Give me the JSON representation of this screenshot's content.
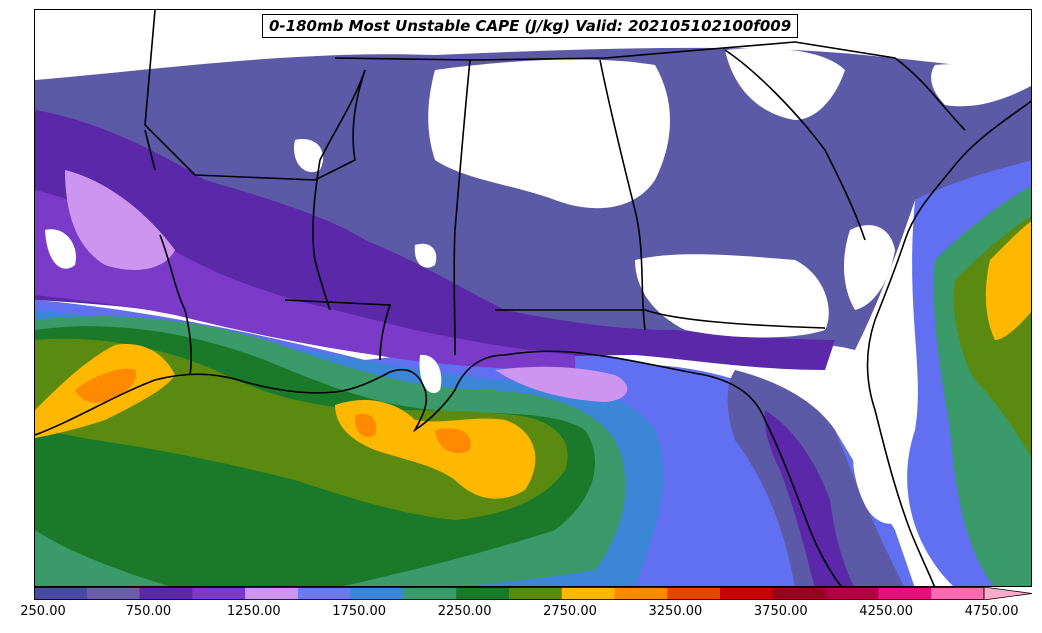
{
  "title": "0-180mb Most Unstable CAPE (J/kg) Valid: 202105102100f009",
  "colorbar": {
    "colors": [
      "#4a4aa0",
      "#6a5ea8",
      "#5a28a8",
      "#7a3cc8",
      "#cc96f0",
      "#6e78f0",
      "#3c86d8",
      "#3a9a6a",
      "#1a7a2a",
      "#5a8a10",
      "#ffb800",
      "#ff8a00",
      "#e84400",
      "#cc0000",
      "#9a0020",
      "#b40040",
      "#e8107a",
      "#ff6ab0"
    ],
    "extend_color": "#ffaacc",
    "tick_labels": [
      "250.00",
      "750.00",
      "1250.00",
      "1750.00",
      "2250.00",
      "2750.00",
      "3250.00",
      "3750.00",
      "4250.00",
      "4750.00"
    ]
  }
}
